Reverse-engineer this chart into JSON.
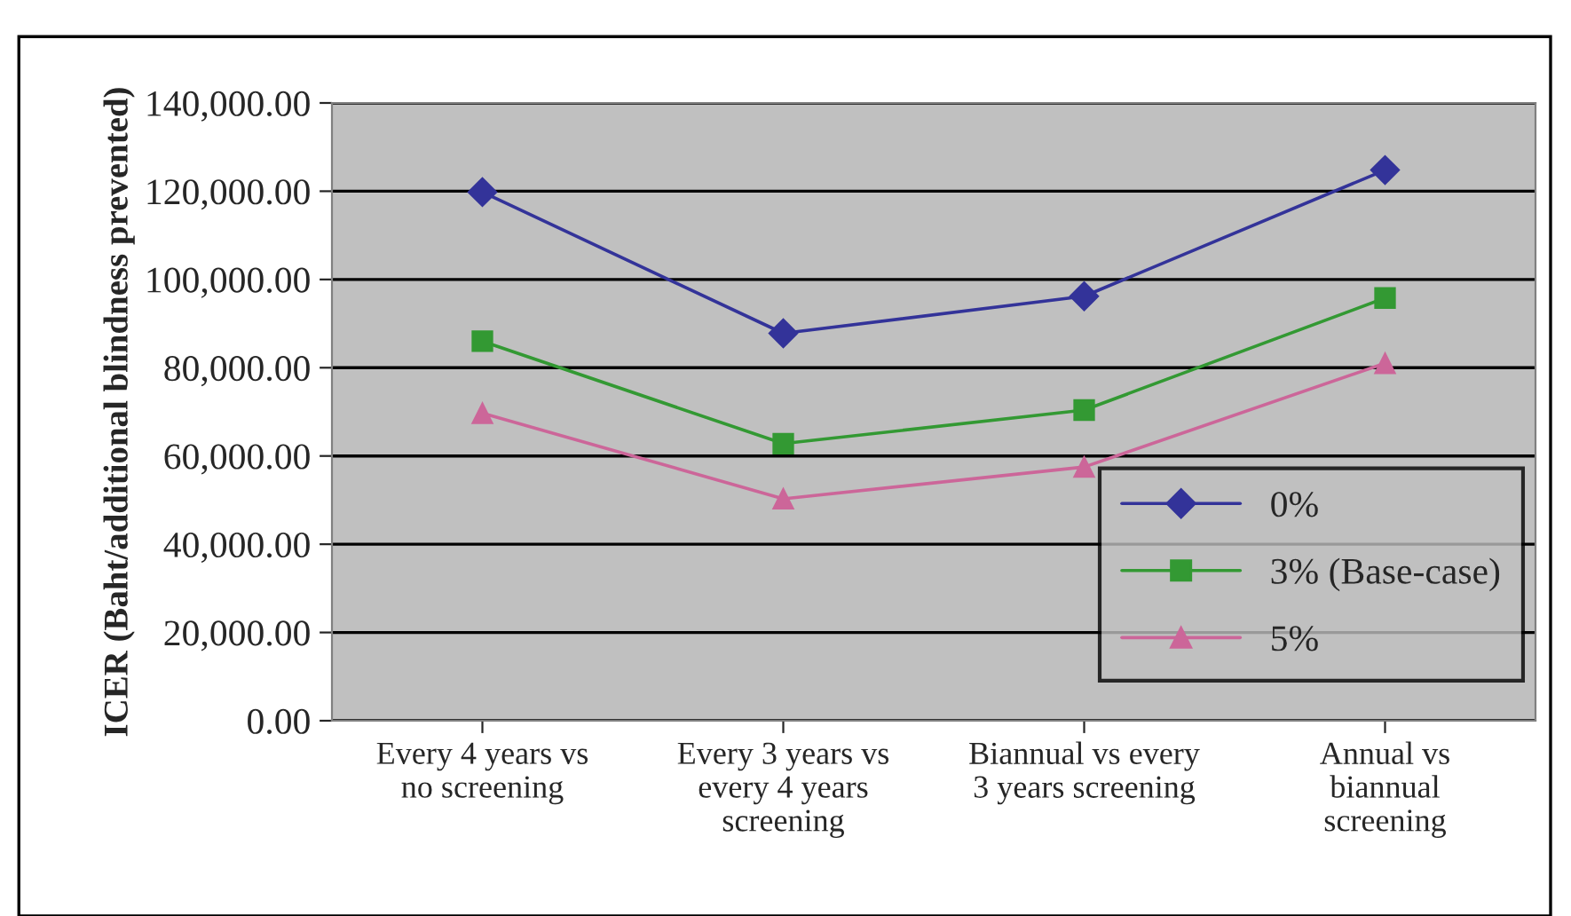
{
  "chart_data": {
    "type": "line",
    "ylabel": "ICER (Baht/additional blindness prevented)",
    "categories": [
      "Every 4 years vs\nno screening",
      "Every 3 years vs\nevery 4 years\nscreening",
      "Biannual vs every\n3 years screening",
      "Annual vs\nbiannual\nscreening"
    ],
    "series": [
      {
        "name": "0%",
        "color": "#333399",
        "marker": "diamond",
        "values": [
          119800,
          87800,
          96200,
          124800
        ]
      },
      {
        "name": "3% (Base-case)",
        "color": "#339933",
        "marker": "square",
        "values": [
          86000,
          62800,
          70400,
          95800
        ]
      },
      {
        "name": "5%",
        "color": "#cc6699",
        "marker": "triangle",
        "values": [
          69700,
          50300,
          57500,
          81000
        ]
      }
    ],
    "ylim": [
      0,
      140000
    ],
    "yticks": [
      {
        "value": 0,
        "label": "0.00"
      },
      {
        "value": 20000,
        "label": "20,000.00"
      },
      {
        "value": 40000,
        "label": "40,000.00"
      },
      {
        "value": 60000,
        "label": "60,000.00"
      },
      {
        "value": 80000,
        "label": "80,000.00"
      },
      {
        "value": 100000,
        "label": "100,000.00"
      },
      {
        "value": 120000,
        "label": "120,000.00"
      },
      {
        "value": 140000,
        "label": "140,000.00"
      }
    ],
    "grid": "y",
    "legend": "bottom right",
    "line_style": "solid"
  }
}
